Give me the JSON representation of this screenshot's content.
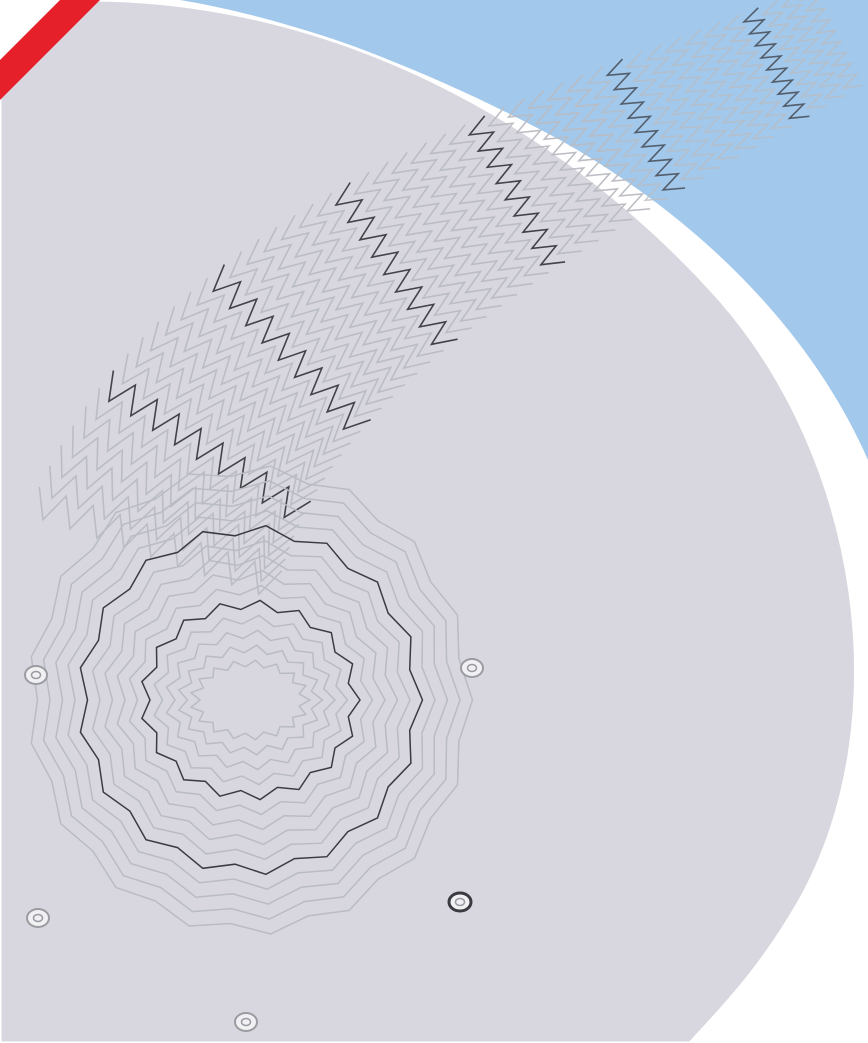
{
  "image": {
    "subject": "stent-illustration",
    "colors": {
      "background": "#ffffff",
      "blue_panel": "#a2c8ec",
      "grey_disc": "#d8d7df",
      "accent_red": "#e5202a",
      "wire": "#b9bcc2",
      "wire_dark": "#3a3b40",
      "marker": "#9a9ca2"
    }
  }
}
